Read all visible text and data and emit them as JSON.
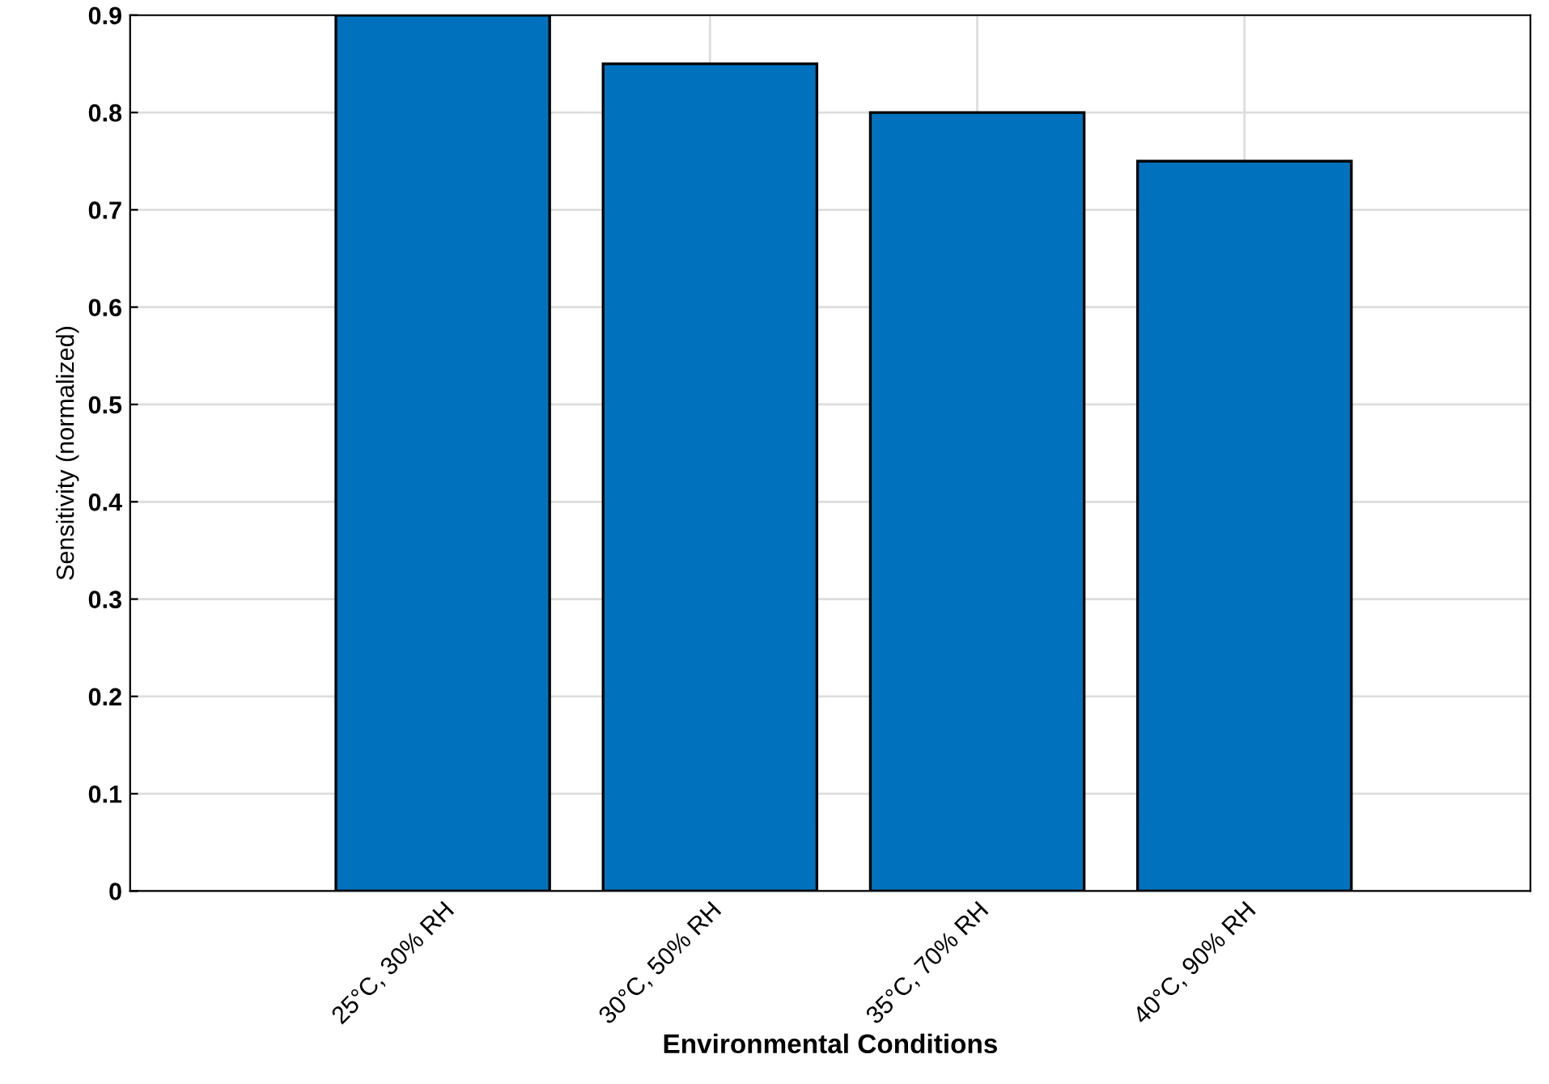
{
  "chart_data": {
    "type": "bar",
    "xlabel": "Environmental Conditions",
    "ylabel": "Sensitivity (normalized)",
    "categories": [
      "25°C, 30% RH",
      "30°C, 50% RH",
      "35°C, 70% RH",
      "40°C, 90% RH"
    ],
    "values": [
      0.9,
      0.85,
      0.8,
      0.75
    ],
    "color": "#0072bd",
    "ylim": [
      0,
      0.9
    ],
    "yticks": [
      0,
      0.1,
      0.2,
      0.3,
      0.4,
      0.5,
      0.6,
      0.7,
      0.8,
      0.9
    ],
    "grid": true
  }
}
